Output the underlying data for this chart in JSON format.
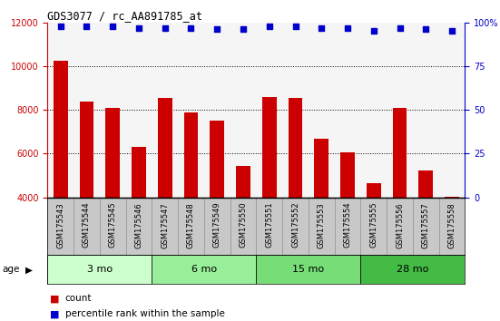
{
  "title": "GDS3077 / rc_AA891785_at",
  "samples": [
    "GSM175543",
    "GSM175544",
    "GSM175545",
    "GSM175546",
    "GSM175547",
    "GSM175548",
    "GSM175549",
    "GSM175550",
    "GSM175551",
    "GSM175552",
    "GSM175553",
    "GSM175554",
    "GSM175555",
    "GSM175556",
    "GSM175557",
    "GSM175558"
  ],
  "bar_values": [
    10250,
    8400,
    8100,
    6300,
    8550,
    7900,
    7500,
    5450,
    8600,
    8550,
    6700,
    6050,
    4650,
    8100,
    5250,
    4050
  ],
  "percentile_values": [
    98,
    98,
    98,
    97,
    97,
    97,
    96,
    96,
    98,
    98,
    97,
    97,
    95,
    97,
    96,
    95
  ],
  "bar_color": "#cc0000",
  "dot_color": "#0000cc",
  "ylim_left": [
    4000,
    12000
  ],
  "ylim_right": [
    0,
    100
  ],
  "yticks_left": [
    4000,
    6000,
    8000,
    10000,
    12000
  ],
  "yticks_right": [
    0,
    25,
    50,
    75,
    100
  ],
  "groups": [
    {
      "label": "3 mo",
      "start": 0,
      "end": 3,
      "color": "#ccffcc"
    },
    {
      "label": "6 mo",
      "start": 4,
      "end": 7,
      "color": "#99ee99"
    },
    {
      "label": "15 mo",
      "start": 8,
      "end": 11,
      "color": "#77dd77"
    },
    {
      "label": "28 mo",
      "start": 12,
      "end": 15,
      "color": "#44bb44"
    }
  ],
  "age_label": "age",
  "legend_count_label": "count",
  "legend_percentile_label": "percentile rank within the sample",
  "tick_area_color": "#c8c8c8",
  "plot_bg_color": "#f5f5f5"
}
